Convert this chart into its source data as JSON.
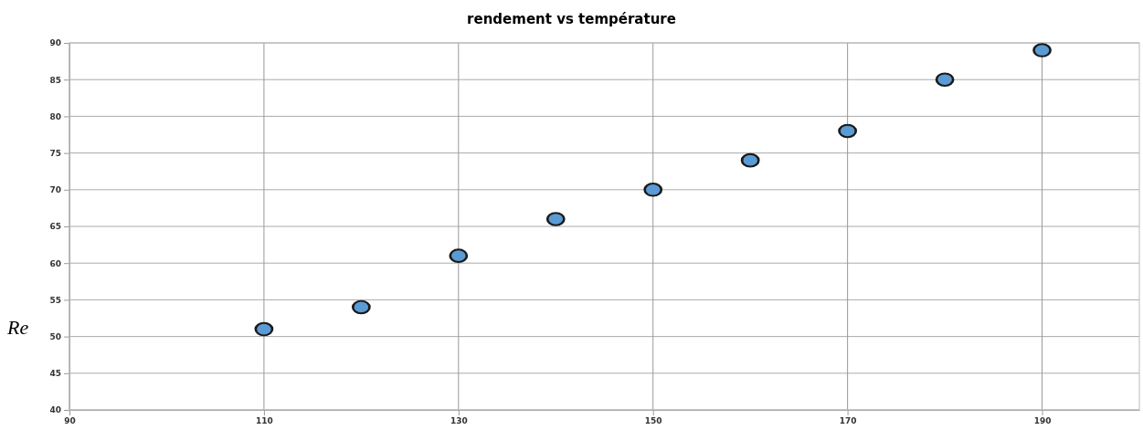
{
  "chart_data": {
    "type": "scatter",
    "title": "rendement vs température",
    "x": [
      110,
      120,
      130,
      140,
      150,
      160,
      170,
      180,
      190
    ],
    "values": [
      51,
      54,
      61,
      66,
      70,
      74,
      78,
      85,
      89
    ],
    "color": "#5b9bd5",
    "marker": "circle",
    "xlim": [
      90,
      200
    ],
    "xticks": [
      90,
      110,
      130,
      150,
      170,
      190
    ],
    "ylim": [
      40,
      90
    ],
    "yticks": [
      40,
      45,
      50,
      55,
      60,
      65,
      70,
      75,
      80,
      85,
      90
    ],
    "grid": true,
    "annotations": [
      "Re"
    ]
  }
}
